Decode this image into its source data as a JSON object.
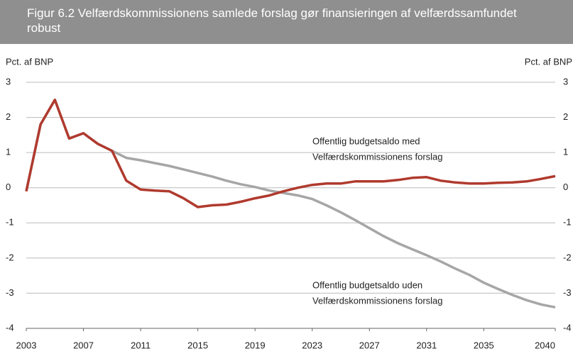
{
  "chart_data": {
    "type": "line",
    "title": "Figur 6.2 Velfærdskommissionens samlede forslag gør finansieringen af velfærdssamfundet robust",
    "ylabel": "Pct. af BNP",
    "y2label": "Pct. af BNP",
    "x": [
      2003,
      2004,
      2005,
      2006,
      2007,
      2008,
      2009,
      2010,
      2011,
      2012,
      2013,
      2014,
      2015,
      2016,
      2017,
      2018,
      2019,
      2020,
      2021,
      2022,
      2023,
      2024,
      2025,
      2026,
      2027,
      2028,
      2029,
      2030,
      2031,
      2032,
      2033,
      2034,
      2035,
      2036,
      2037,
      2038,
      2039,
      2040
    ],
    "xlim": [
      2003,
      2040
    ],
    "xticks": [
      2003,
      2007,
      2011,
      2015,
      2019,
      2023,
      2027,
      2031,
      2035,
      2040
    ],
    "ylim": [
      -4,
      3
    ],
    "yticks": [
      -4,
      -3,
      -2,
      -1,
      0,
      1,
      2,
      3
    ],
    "y2lim": [
      -4,
      3
    ],
    "y2ticks": [
      -4,
      -3,
      -2,
      -1,
      0,
      1,
      2,
      3
    ],
    "grid": true,
    "series": [
      {
        "color": "#a6a6a6",
        "values": [
          -0.1,
          1.8,
          2.5,
          1.4,
          1.55,
          1.25,
          1.05,
          0.85,
          0.78,
          0.7,
          0.62,
          0.52,
          0.42,
          0.32,
          0.2,
          0.1,
          0.02,
          -0.08,
          -0.15,
          -0.22,
          -0.32,
          -0.5,
          -0.7,
          -0.92,
          -1.15,
          -1.38,
          -1.58,
          -1.75,
          -1.92,
          -2.1,
          -2.3,
          -2.48,
          -2.7,
          -2.88,
          -3.05,
          -3.2,
          -3.32,
          -3.4
        ]
      },
      {
        "color": "#b03a2e",
        "values": [
          -0.1,
          1.8,
          2.5,
          1.4,
          1.55,
          1.25,
          1.05,
          0.2,
          -0.05,
          -0.08,
          -0.1,
          -0.3,
          -0.55,
          -0.5,
          -0.48,
          -0.4,
          -0.3,
          -0.22,
          -0.1,
          0.0,
          0.08,
          0.12,
          0.12,
          0.18,
          0.18,
          0.18,
          0.22,
          0.28,
          0.3,
          0.2,
          0.15,
          0.12,
          0.12,
          0.14,
          0.15,
          0.18,
          0.25,
          0.33
        ]
      }
    ],
    "annotations": [
      "Offentlig budgetsaldo med",
      "Velfærdskommissionens forslag",
      "Offentlig budgetsaldo uden",
      "Velfærdskommissionens forslag"
    ]
  }
}
